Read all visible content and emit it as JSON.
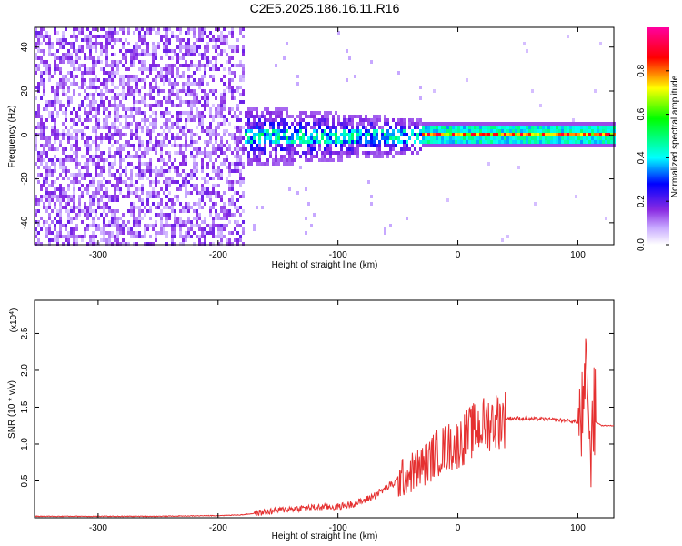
{
  "title": "C2E5.2025.186.16.11.R16",
  "chart_data": [
    {
      "type": "heatmap",
      "xlabel": "Height of straight line (km)",
      "ylabel": "Frequency (Hz)",
      "xlim": [
        -353,
        130
      ],
      "ylim": [
        -50,
        49
      ],
      "x_ticks": [
        -300,
        -200,
        -100,
        0,
        100
      ],
      "x_tick_labels": [
        "-300",
        "-200",
        "-100",
        "0",
        "100"
      ],
      "y_ticks": [
        -40,
        -20,
        0,
        20,
        40
      ],
      "y_tick_labels": [
        "-40",
        "-20",
        "0",
        "20",
        "40"
      ],
      "colorbar": {
        "label": "Normalized spectral amplitude",
        "range": [
          0,
          1
        ],
        "ticks": [
          0.0,
          0.2,
          0.4,
          0.6,
          0.8
        ],
        "tick_labels": [
          "0.0",
          "0.2",
          "0.4",
          "0.6",
          "0.8"
        ],
        "colormap": [
          "#ffffff",
          "#8a2be2",
          "#0000ff",
          "#00ffff",
          "#00ff00",
          "#ffff00",
          "#ff0000",
          "#ff00a0"
        ]
      },
      "regions": [
        {
          "description": "broadband noise",
          "x": [
            -353,
            -180
          ],
          "y": [
            -50,
            49
          ],
          "amplitude": 0.1
        },
        {
          "description": "transition noise",
          "x": [
            -180,
            -30
          ],
          "y": [
            -15,
            15
          ],
          "amplitude": 0.25
        },
        {
          "description": "narrow signal band",
          "x": [
            -30,
            130
          ],
          "y": [
            -2,
            3
          ],
          "amplitude": 0.7
        }
      ],
      "grid": false
    },
    {
      "type": "line",
      "xlabel": "Height of straight line (km)",
      "ylabel": "SNR (10 * v/v)",
      "y_multiplier_label": "(x10",
      "y_multiplier_exp": "4",
      "y_multiplier_close": ")",
      "xlim": [
        -353,
        130
      ],
      "ylim": [
        0,
        2.95
      ],
      "x_ticks": [
        -300,
        -200,
        -100,
        0,
        100
      ],
      "x_tick_labels": [
        "-300",
        "-200",
        "-100",
        "0",
        "100"
      ],
      "y_ticks": [
        0.5,
        1.0,
        1.5,
        2.0,
        2.5
      ],
      "y_tick_labels": [
        "0.5",
        "1.0",
        "1.5",
        "2.0",
        "2.5"
      ],
      "line_color": "#e53030",
      "series": [
        {
          "x": [
            -353,
            -300,
            -250,
            -200,
            -180,
            -160,
            -140,
            -120,
            -100,
            -90,
            -80,
            -70,
            -60,
            -50,
            -40,
            -30,
            -25,
            -20,
            -10,
            0,
            10,
            20,
            30,
            40,
            50,
            60,
            70,
            80,
            90,
            100,
            105,
            108,
            110,
            112,
            115,
            120,
            130
          ],
          "values": [
            0.02,
            0.02,
            0.02,
            0.03,
            0.04,
            0.08,
            0.12,
            0.14,
            0.15,
            0.18,
            0.22,
            0.3,
            0.4,
            0.5,
            0.6,
            0.7,
            0.75,
            0.85,
            0.95,
            1.0,
            1.15,
            1.25,
            1.32,
            1.35,
            1.35,
            1.34,
            1.34,
            1.33,
            1.32,
            1.3,
            1.35,
            2.2,
            0.6,
            1.5,
            1.3,
            1.25,
            1.25
          ]
        }
      ],
      "grid": false
    }
  ]
}
